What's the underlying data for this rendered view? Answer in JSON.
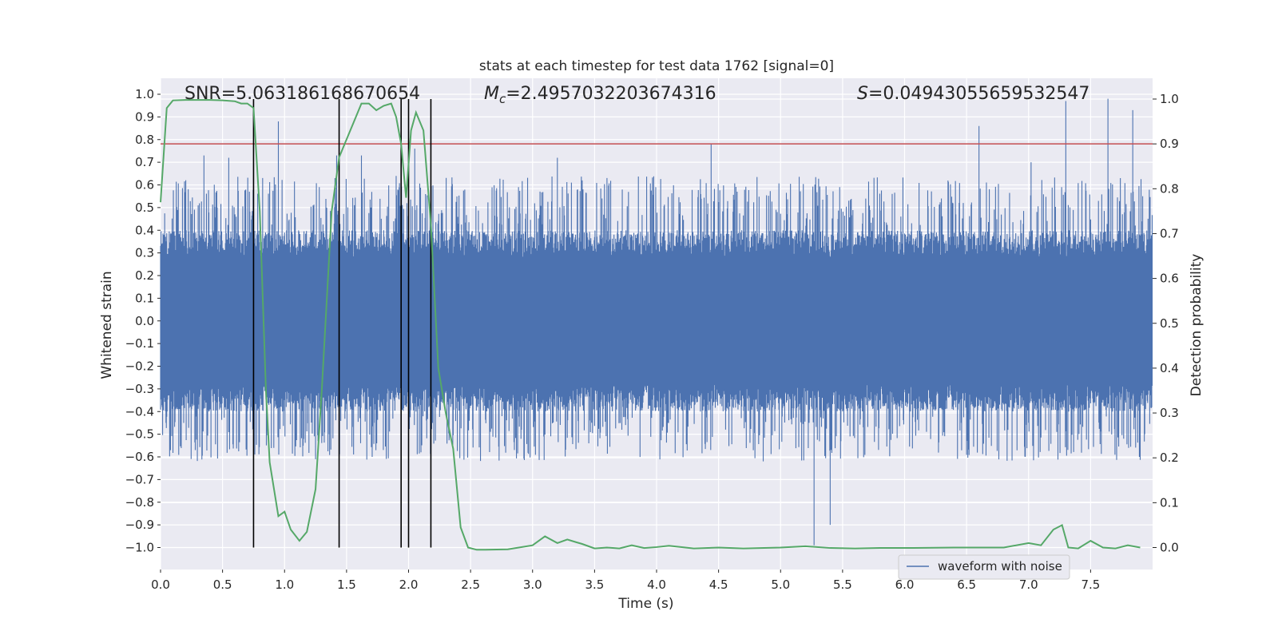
{
  "chart_data": {
    "type": "line",
    "title": "stats at each timestep for test data 1762 [signal=0]",
    "xlabel": "Time (s)",
    "ylabel": "Whitened strain",
    "y2label": "Detection probability",
    "xlim": [
      0.0,
      8.0
    ],
    "ylim": [
      -1.1,
      1.1
    ],
    "y2lim": [
      -0.05,
      1.04
    ],
    "x_ticks": [
      0.0,
      0.5,
      1.0,
      1.5,
      2.0,
      2.5,
      3.0,
      3.5,
      4.0,
      4.5,
      5.0,
      5.5,
      6.0,
      6.5,
      7.0,
      7.5
    ],
    "x_tick_labels": [
      "0.0",
      "0.5",
      "1.0",
      "1.5",
      "2.0",
      "2.5",
      "3.0",
      "3.5",
      "4.0",
      "4.5",
      "5.0",
      "5.5",
      "6.0",
      "6.5",
      "7.0",
      "7.5"
    ],
    "y_ticks": [
      1.0,
      0.9,
      0.8,
      0.7,
      0.6,
      0.5,
      0.4,
      0.3,
      0.2,
      0.1,
      0.0,
      -0.1,
      -0.2,
      -0.3,
      -0.4,
      -0.5,
      -0.6,
      -0.7,
      -0.8,
      -0.9,
      -1.0
    ],
    "y_tick_labels": [
      "1.0",
      "0.9",
      "0.8",
      "0.7",
      "0.6",
      "0.5",
      "0.4",
      "0.3",
      "0.2",
      "0.1",
      "0.0",
      "−0.1",
      "−0.2",
      "−0.3",
      "−0.4",
      "−0.5",
      "−0.6",
      "−0.7",
      "−0.8",
      "−0.9",
      "−1.0"
    ],
    "y2_ticks": [
      1.0,
      0.9,
      0.8,
      0.7,
      0.6,
      0.5,
      0.4,
      0.3,
      0.2,
      0.1,
      0.0
    ],
    "y2_tick_labels": [
      "1.0",
      "0.9",
      "0.8",
      "0.7",
      "0.6",
      "0.5",
      "0.4",
      "0.3",
      "0.2",
      "0.1",
      "0.0"
    ],
    "grid": true,
    "legend": {
      "placement": "lower-right",
      "entries": [
        "waveform with noise"
      ]
    },
    "annotations": {
      "snr": "SNR=5.063186168670654",
      "mc_symbol": "M",
      "mc_sub": "c",
      "mc_value": "=2.4957032203674316",
      "s_symbol": "S",
      "s_value": "=0.04943055659532547"
    },
    "threshold_line": {
      "axis": "y2",
      "value": 0.9,
      "color": "#c44e52"
    },
    "vertical_lines": [
      0.75,
      1.44,
      1.94,
      2.0,
      2.18
    ],
    "waveform": {
      "name": "waveform with noise",
      "color": "#4c72b0",
      "envelope_typical": 0.38,
      "peak_times": [
        0.35,
        0.55,
        0.95,
        1.42,
        1.62,
        2.05,
        3.2,
        3.4,
        4.44,
        5.27,
        5.4,
        6.6,
        7.02,
        7.3,
        7.64,
        7.84
      ],
      "peak_values": [
        0.73,
        0.72,
        0.88,
        0.73,
        0.73,
        0.76,
        0.72,
        0.62,
        0.78,
        -0.99,
        -0.9,
        0.86,
        0.7,
        0.97,
        0.98,
        0.93
      ]
    },
    "detection_probability": {
      "color": "#55a868",
      "x": [
        0.0,
        0.05,
        0.1,
        0.2,
        0.3,
        0.4,
        0.5,
        0.6,
        0.65,
        0.7,
        0.75,
        0.8,
        0.85,
        0.88,
        0.95,
        1.0,
        1.05,
        1.12,
        1.18,
        1.25,
        1.3,
        1.38,
        1.44,
        1.5,
        1.56,
        1.62,
        1.68,
        1.74,
        1.8,
        1.86,
        1.9,
        1.94,
        1.98,
        2.02,
        2.06,
        2.12,
        2.18,
        2.24,
        2.3,
        2.36,
        2.42,
        2.48,
        2.55,
        2.62,
        2.8,
        3.0,
        3.1,
        3.2,
        3.28,
        3.35,
        3.4,
        3.5,
        3.6,
        3.7,
        3.8,
        3.9,
        4.0,
        4.1,
        4.3,
        4.5,
        4.7,
        5.0,
        5.2,
        5.4,
        5.6,
        5.8,
        6.0,
        6.4,
        6.8,
        7.0,
        7.1,
        7.2,
        7.27,
        7.32,
        7.4,
        7.5,
        7.6,
        7.7,
        7.8,
        7.9
      ],
      "y": [
        0.77,
        0.98,
        0.997,
        0.998,
        0.998,
        0.998,
        0.997,
        0.995,
        0.99,
        0.99,
        0.98,
        0.75,
        0.35,
        0.19,
        0.07,
        0.08,
        0.04,
        0.015,
        0.035,
        0.13,
        0.35,
        0.75,
        0.87,
        0.91,
        0.95,
        0.99,
        0.99,
        0.975,
        0.985,
        0.99,
        0.96,
        0.9,
        0.78,
        0.93,
        0.97,
        0.93,
        0.72,
        0.4,
        0.3,
        0.22,
        0.045,
        0.0,
        -0.005,
        -0.005,
        -0.004,
        0.005,
        0.025,
        0.01,
        0.018,
        0.012,
        0.008,
        -0.002,
        0.0,
        -0.002,
        0.005,
        -0.001,
        0.001,
        0.004,
        -0.002,
        0.0,
        -0.002,
        0.0,
        0.003,
        -0.001,
        -0.002,
        -0.001,
        -0.001,
        0.0,
        0.0,
        0.01,
        0.005,
        0.04,
        0.05,
        0.0,
        -0.002,
        0.015,
        0.0,
        -0.002,
        0.005,
        0.0
      ]
    }
  }
}
